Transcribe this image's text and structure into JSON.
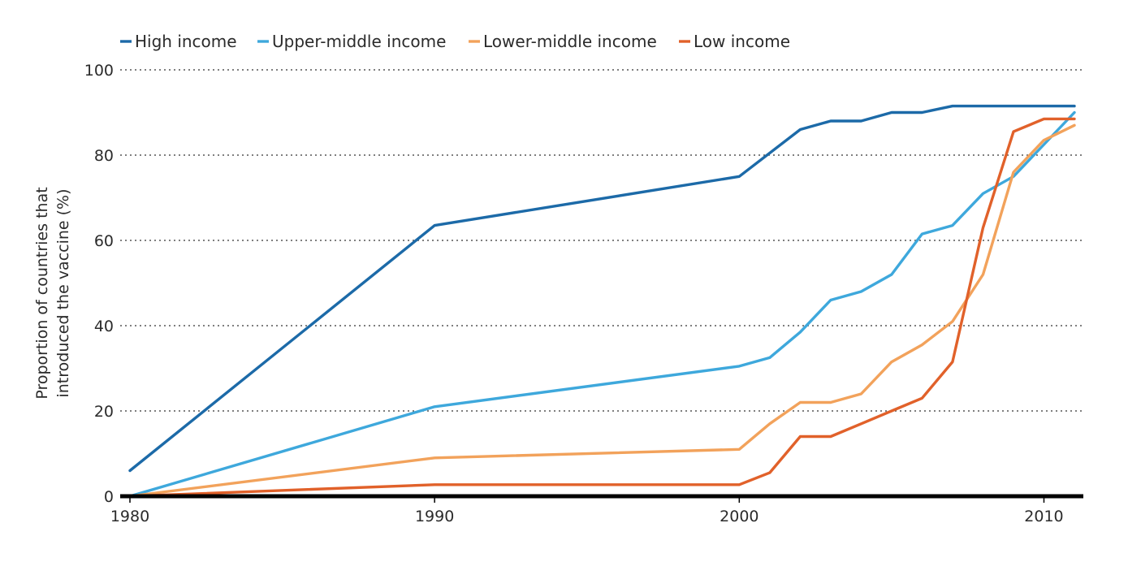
{
  "chart_data": {
    "type": "line",
    "title": "",
    "xlabel": "",
    "ylabel": [
      "Proportion of countries that",
      "introduced the vaccine (%)"
    ],
    "xlim": [
      1980,
      2011
    ],
    "ylim": [
      0,
      100
    ],
    "xticks": [
      1980,
      1990,
      2000,
      2010
    ],
    "yticks": [
      0,
      20,
      40,
      60,
      80,
      100
    ],
    "grid": "horizontal dotted",
    "legend_position": "top-left",
    "series": [
      {
        "name": "High income",
        "color": "#1c6aa8",
        "points": [
          [
            1980,
            6
          ],
          [
            1990,
            63.5
          ],
          [
            2000,
            75
          ],
          [
            2002,
            86
          ],
          [
            2003,
            88
          ],
          [
            2004,
            88
          ],
          [
            2005,
            90
          ],
          [
            2006,
            90
          ],
          [
            2007,
            91.5
          ],
          [
            2011,
            91.5
          ]
        ]
      },
      {
        "name": "Upper-middle income",
        "color": "#3ea8dc",
        "points": [
          [
            1980,
            0
          ],
          [
            1990,
            21
          ],
          [
            2000,
            30.5
          ],
          [
            2001,
            32.5
          ],
          [
            2002,
            38.5
          ],
          [
            2003,
            46
          ],
          [
            2004,
            48
          ],
          [
            2005,
            52
          ],
          [
            2006,
            61.5
          ],
          [
            2007,
            63.5
          ],
          [
            2008,
            71
          ],
          [
            2009,
            75
          ],
          [
            2011,
            90
          ]
        ]
      },
      {
        "name": "Lower-middle income",
        "color": "#f2a25b",
        "points": [
          [
            1980,
            0
          ],
          [
            1990,
            9
          ],
          [
            2000,
            11
          ],
          [
            2001,
            17
          ],
          [
            2002,
            22
          ],
          [
            2003,
            22
          ],
          [
            2004,
            24
          ],
          [
            2005,
            31.5
          ],
          [
            2006,
            35.5
          ],
          [
            2007,
            41
          ],
          [
            2008,
            52
          ],
          [
            2009,
            76
          ],
          [
            2010,
            83.5
          ],
          [
            2011,
            87
          ]
        ]
      },
      {
        "name": "Low income",
        "color": "#e1612a",
        "points": [
          [
            1980,
            0
          ],
          [
            1990,
            2.7
          ],
          [
            2000,
            2.7
          ],
          [
            2001,
            5.5
          ],
          [
            2002,
            14
          ],
          [
            2003,
            14
          ],
          [
            2004,
            17
          ],
          [
            2005,
            20
          ],
          [
            2006,
            23
          ],
          [
            2007,
            31.5
          ],
          [
            2008,
            63
          ],
          [
            2009,
            85.5
          ],
          [
            2010,
            88.5
          ],
          [
            2011,
            88.5
          ]
        ]
      }
    ]
  }
}
